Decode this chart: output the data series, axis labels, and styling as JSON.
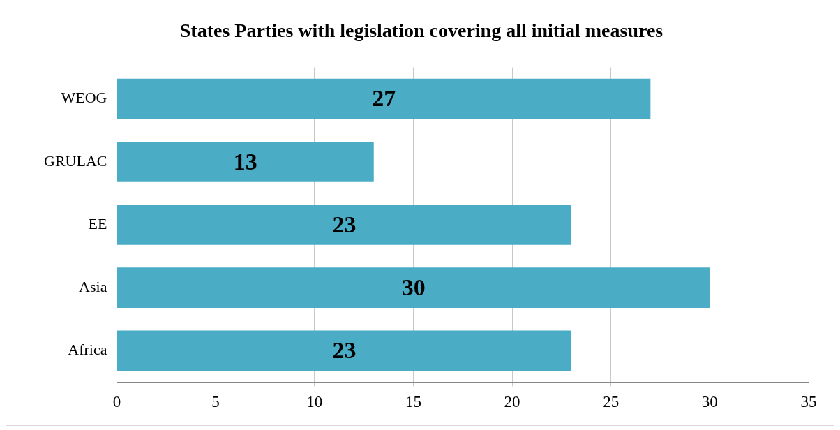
{
  "chart_data": {
    "type": "bar",
    "orientation": "horizontal",
    "title": "States Parties with legislation covering all initial measures",
    "categories": [
      "WEOG",
      "GRULAC",
      "EE",
      "Asia",
      "Africa"
    ],
    "values": [
      27,
      13,
      23,
      30,
      23
    ],
    "color": "#4bacc6",
    "xlim": [
      0,
      35
    ],
    "xticks": [
      0,
      5,
      10,
      15,
      20,
      25,
      30,
      35
    ],
    "grid": "x",
    "data_labels": true,
    "legend": false
  }
}
